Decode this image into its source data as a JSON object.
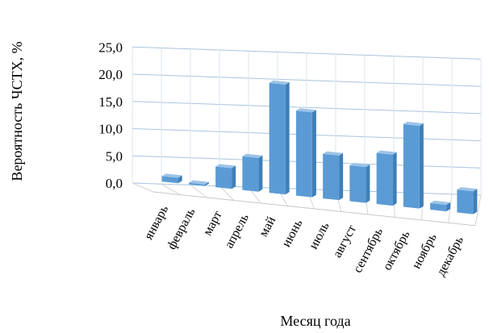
{
  "chart_data": {
    "type": "bar",
    "title": "",
    "xlabel": "Месяц года",
    "ylabel": "Вероятность ЧСТХ, %",
    "categories": [
      "январь",
      "февраль",
      "март",
      "апрель",
      "май",
      "июнь",
      "июль",
      "август",
      "сентябрь",
      "октябрь",
      "ноябрь",
      "декабрь"
    ],
    "values": [
      1.0,
      0.0,
      3.8,
      6.2,
      20.2,
      15.6,
      8.2,
      6.6,
      9.4,
      15.2,
      1.2,
      4.2
    ],
    "ylim": [
      0,
      25
    ],
    "y_ticks": [
      "0,0",
      "5,0",
      "10,0",
      "15,0",
      "20,0",
      "25,0"
    ],
    "grid": true,
    "style": "3d-column",
    "colors": {
      "bar_front": "#5b9bd5",
      "bar_side": "#3f7fb8",
      "bar_top": "#9cc3e8",
      "grid": "#aac4e0"
    }
  }
}
